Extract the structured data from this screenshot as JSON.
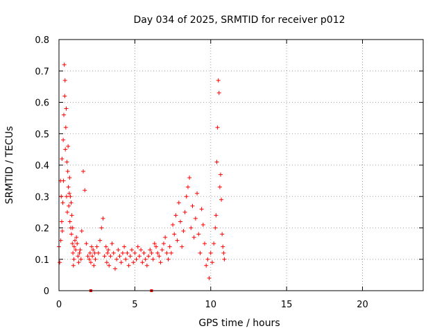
{
  "chart_data": {
    "type": "scatter",
    "title": "Day 034 of 2025, SRMTID for receiver p012",
    "xlabel": "GPS time / hours",
    "ylabel": "SRMTID / TECUs",
    "xlim": [
      0,
      24
    ],
    "ylim": [
      0,
      0.8
    ],
    "xticks": [
      0,
      5,
      10,
      15,
      20
    ],
    "yticks": [
      0,
      0.1,
      0.2,
      0.3,
      0.4,
      0.5,
      0.6,
      0.7,
      0.8
    ],
    "xtick_labels": [
      "0",
      "5",
      "10",
      "15",
      "20"
    ],
    "ytick_labels": [
      "0",
      "0.1",
      "0.2",
      "0.3",
      "0.4",
      "0.5",
      "0.6",
      "0.7",
      "0.8"
    ],
    "grid": true,
    "marker": "+",
    "color": "#ff0000",
    "series": [
      {
        "name": "SRMTID p012",
        "x": [
          0.0,
          0.05,
          0.1,
          0.12,
          0.15,
          0.18,
          0.2,
          0.22,
          0.25,
          0.28,
          0.3,
          0.32,
          0.35,
          0.38,
          0.4,
          0.42,
          0.45,
          0.48,
          0.5,
          0.52,
          0.55,
          0.58,
          0.6,
          0.62,
          0.65,
          0.68,
          0.7,
          0.72,
          0.75,
          0.78,
          0.8,
          0.82,
          0.85,
          0.88,
          0.9,
          0.92,
          0.95,
          0.98,
          1.0,
          1.05,
          1.1,
          1.15,
          1.2,
          1.25,
          1.3,
          1.35,
          1.4,
          1.45,
          1.5,
          1.6,
          1.7,
          1.8,
          1.9,
          2.0,
          2.05,
          2.1,
          2.15,
          2.2,
          2.25,
          2.3,
          2.35,
          2.4,
          2.5,
          2.6,
          2.7,
          2.8,
          2.9,
          3.0,
          3.1,
          3.15,
          3.2,
          3.25,
          3.3,
          3.4,
          3.5,
          3.6,
          3.7,
          3.8,
          3.9,
          4.0,
          4.1,
          4.2,
          4.3,
          4.4,
          4.5,
          4.6,
          4.7,
          4.8,
          4.9,
          5.0,
          5.1,
          5.2,
          5.3,
          5.4,
          5.5,
          5.6,
          5.7,
          5.8,
          5.9,
          6.0,
          6.1,
          6.2,
          6.3,
          6.4,
          6.5,
          6.6,
          6.7,
          6.8,
          6.9,
          7.0,
          7.1,
          7.2,
          7.3,
          7.4,
          7.5,
          7.6,
          7.7,
          7.8,
          7.9,
          8.0,
          8.1,
          8.2,
          8.3,
          8.4,
          8.5,
          8.6,
          8.7,
          8.8,
          8.9,
          9.0,
          9.1,
          9.2,
          9.3,
          9.4,
          9.5,
          9.6,
          9.7,
          9.8,
          9.9,
          10.0,
          10.1,
          10.2,
          10.3,
          10.35,
          10.4,
          10.45,
          10.5,
          10.55,
          10.6,
          10.65,
          10.7,
          10.75,
          10.8,
          10.85,
          10.9
        ],
        "y": [
          0.14,
          0.09,
          0.35,
          0.16,
          0.3,
          0.22,
          0.42,
          0.19,
          0.28,
          0.48,
          0.35,
          0.56,
          0.72,
          0.62,
          0.67,
          0.45,
          0.52,
          0.58,
          0.3,
          0.41,
          0.25,
          0.38,
          0.46,
          0.33,
          0.27,
          0.31,
          0.36,
          0.22,
          0.3,
          0.2,
          0.28,
          0.18,
          0.24,
          0.15,
          0.2,
          0.12,
          0.08,
          0.1,
          0.14,
          0.16,
          0.13,
          0.17,
          0.15,
          0.11,
          0.09,
          0.12,
          0.13,
          0.1,
          0.19,
          0.38,
          0.32,
          0.15,
          0.11,
          0.1,
          0.12,
          0.09,
          0.14,
          0.11,
          0.13,
          0.08,
          0.12,
          0.1,
          0.14,
          0.12,
          0.16,
          0.2,
          0.23,
          0.11,
          0.14,
          0.09,
          0.12,
          0.13,
          0.08,
          0.11,
          0.15,
          0.12,
          0.07,
          0.1,
          0.13,
          0.11,
          0.09,
          0.12,
          0.14,
          0.1,
          0.12,
          0.08,
          0.11,
          0.13,
          0.09,
          0.12,
          0.1,
          0.14,
          0.11,
          0.13,
          0.09,
          0.12,
          0.1,
          0.08,
          0.11,
          0.13,
          0.12,
          0.1,
          0.15,
          0.14,
          0.12,
          0.11,
          0.09,
          0.13,
          0.15,
          0.17,
          0.12,
          0.1,
          0.14,
          0.12,
          0.21,
          0.18,
          0.24,
          0.16,
          0.28,
          0.22,
          0.14,
          0.19,
          0.25,
          0.3,
          0.33,
          0.36,
          0.2,
          0.27,
          0.17,
          0.23,
          0.31,
          0.18,
          0.12,
          0.26,
          0.21,
          0.15,
          0.08,
          0.1,
          0.04,
          0.12,
          0.09,
          0.15,
          0.2,
          0.24,
          0.41,
          0.52,
          0.67,
          0.63,
          0.33,
          0.37,
          0.29,
          0.18,
          0.14,
          0.12,
          0.1
        ]
      }
    ],
    "xaxis_markers": [
      2.1,
      6.1
    ]
  }
}
